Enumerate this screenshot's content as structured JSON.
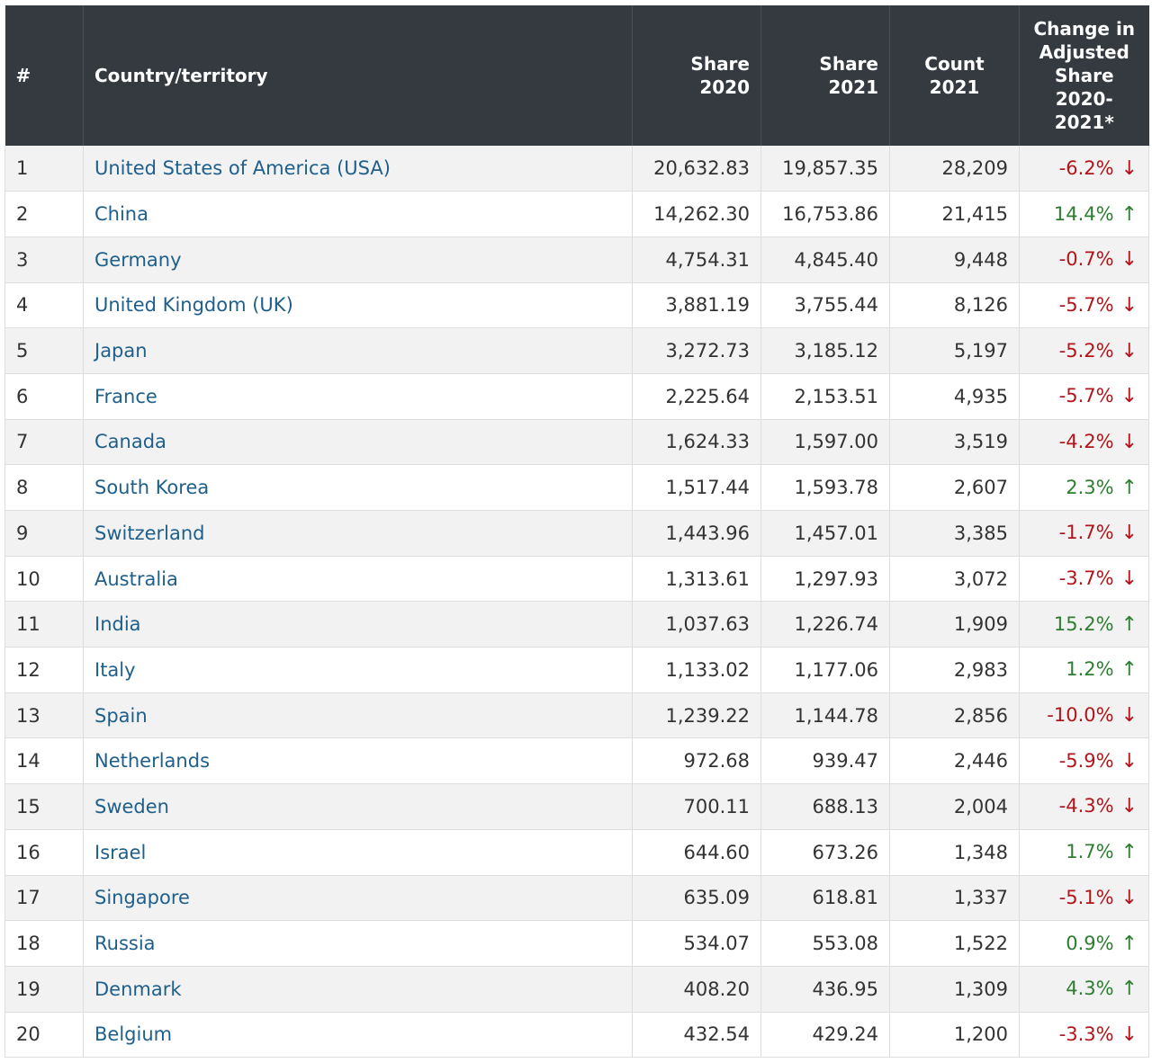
{
  "table": {
    "headers": {
      "rank": "#",
      "country": "Country/territory",
      "share_2020": "Share 2020",
      "share_2021": "Share 2021",
      "count_2021_line1": "Count",
      "count_2021_line2": "2021",
      "change_line1": "Change in",
      "change_line2": "Adjusted",
      "change_line3": "Share",
      "change_line4": "2020-",
      "change_line5": "2021*"
    },
    "colors": {
      "negative": "#b0161b",
      "positive": "#2e7d32",
      "link": "#1f5f8b",
      "header_bg": "#343a40"
    },
    "rows": [
      {
        "rank": "1",
        "country": "United States of America (USA)",
        "share_2020": "20,632.83",
        "share_2021": "19,857.35",
        "count_2021": "28,209",
        "change": "-6.2%",
        "direction": "down"
      },
      {
        "rank": "2",
        "country": "China",
        "share_2020": "14,262.30",
        "share_2021": "16,753.86",
        "count_2021": "21,415",
        "change": "14.4%",
        "direction": "up"
      },
      {
        "rank": "3",
        "country": "Germany",
        "share_2020": "4,754.31",
        "share_2021": "4,845.40",
        "count_2021": "9,448",
        "change": "-0.7%",
        "direction": "down"
      },
      {
        "rank": "4",
        "country": "United Kingdom (UK)",
        "share_2020": "3,881.19",
        "share_2021": "3,755.44",
        "count_2021": "8,126",
        "change": "-5.7%",
        "direction": "down"
      },
      {
        "rank": "5",
        "country": "Japan",
        "share_2020": "3,272.73",
        "share_2021": "3,185.12",
        "count_2021": "5,197",
        "change": "-5.2%",
        "direction": "down"
      },
      {
        "rank": "6",
        "country": "France",
        "share_2020": "2,225.64",
        "share_2021": "2,153.51",
        "count_2021": "4,935",
        "change": "-5.7%",
        "direction": "down"
      },
      {
        "rank": "7",
        "country": "Canada",
        "share_2020": "1,624.33",
        "share_2021": "1,597.00",
        "count_2021": "3,519",
        "change": "-4.2%",
        "direction": "down"
      },
      {
        "rank": "8",
        "country": "South Korea",
        "share_2020": "1,517.44",
        "share_2021": "1,593.78",
        "count_2021": "2,607",
        "change": "2.3%",
        "direction": "up"
      },
      {
        "rank": "9",
        "country": "Switzerland",
        "share_2020": "1,443.96",
        "share_2021": "1,457.01",
        "count_2021": "3,385",
        "change": "-1.7%",
        "direction": "down"
      },
      {
        "rank": "10",
        "country": "Australia",
        "share_2020": "1,313.61",
        "share_2021": "1,297.93",
        "count_2021": "3,072",
        "change": "-3.7%",
        "direction": "down"
      },
      {
        "rank": "11",
        "country": "India",
        "share_2020": "1,037.63",
        "share_2021": "1,226.74",
        "count_2021": "1,909",
        "change": "15.2%",
        "direction": "up"
      },
      {
        "rank": "12",
        "country": "Italy",
        "share_2020": "1,133.02",
        "share_2021": "1,177.06",
        "count_2021": "2,983",
        "change": "1.2%",
        "direction": "up"
      },
      {
        "rank": "13",
        "country": "Spain",
        "share_2020": "1,239.22",
        "share_2021": "1,144.78",
        "count_2021": "2,856",
        "change": "-10.0%",
        "direction": "down"
      },
      {
        "rank": "14",
        "country": "Netherlands",
        "share_2020": "972.68",
        "share_2021": "939.47",
        "count_2021": "2,446",
        "change": "-5.9%",
        "direction": "down"
      },
      {
        "rank": "15",
        "country": "Sweden",
        "share_2020": "700.11",
        "share_2021": "688.13",
        "count_2021": "2,004",
        "change": "-4.3%",
        "direction": "down"
      },
      {
        "rank": "16",
        "country": "Israel",
        "share_2020": "644.60",
        "share_2021": "673.26",
        "count_2021": "1,348",
        "change": "1.7%",
        "direction": "up"
      },
      {
        "rank": "17",
        "country": "Singapore",
        "share_2020": "635.09",
        "share_2021": "618.81",
        "count_2021": "1,337",
        "change": "-5.1%",
        "direction": "down"
      },
      {
        "rank": "18",
        "country": "Russia",
        "share_2020": "534.07",
        "share_2021": "553.08",
        "count_2021": "1,522",
        "change": "0.9%",
        "direction": "up"
      },
      {
        "rank": "19",
        "country": "Denmark",
        "share_2020": "408.20",
        "share_2021": "436.95",
        "count_2021": "1,309",
        "change": "4.3%",
        "direction": "up"
      },
      {
        "rank": "20",
        "country": "Belgium",
        "share_2020": "432.54",
        "share_2021": "429.24",
        "count_2021": "1,200",
        "change": "-3.3%",
        "direction": "down"
      }
    ]
  }
}
